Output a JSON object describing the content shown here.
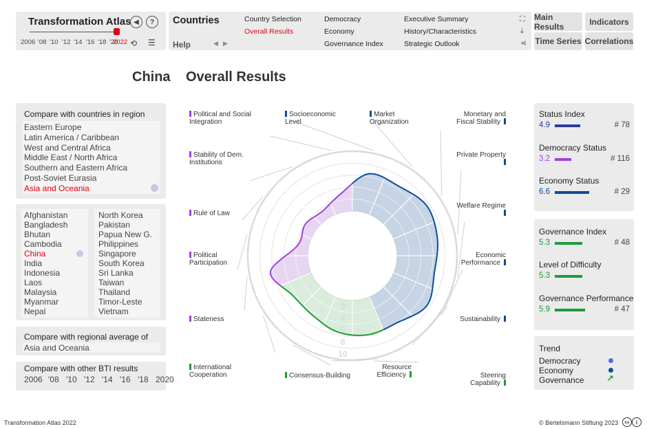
{
  "header": {
    "app_title": "Transformation Atlas",
    "years": [
      "2006",
      "'08",
      "'10",
      "'12",
      "'14",
      "'16",
      "'18",
      "'20",
      "2022"
    ],
    "section_title": "Countries",
    "help_label": "Help",
    "menu": {
      "col1": [
        {
          "label": "Country Selection",
          "active": false
        },
        {
          "label": "Overall Results",
          "active": true
        }
      ],
      "col2": [
        {
          "label": "Democracy"
        },
        {
          "label": "Economy"
        },
        {
          "label": "Governance Index"
        }
      ],
      "col3": [
        {
          "label": "Executive Summary"
        },
        {
          "label": "History/Characteristics"
        },
        {
          "label": "Strategic Outlook"
        }
      ]
    },
    "nav_buttons": [
      "Main Results",
      "Indicators",
      "Time Series",
      "Correlations"
    ]
  },
  "page": {
    "country": "China",
    "view": "Overall Results"
  },
  "left": {
    "region_title": "Compare with countries in region",
    "regions": [
      "Eastern Europe",
      "Latin America / Caribbean",
      "West and Central Africa",
      "Middle East / North Africa",
      "Southern and Eastern Africa",
      "Post-Soviet Eurasia",
      "Asia and Oceania"
    ],
    "selected_region": "Asia and Oceania",
    "countries_col1": [
      "Afghanistan",
      "Bangladesh",
      "Bhutan",
      "Cambodia",
      "China",
      "India",
      "Indonesia",
      "Laos",
      "Malaysia",
      "Myanmar",
      "Nepal"
    ],
    "countries_col2": [
      "North Korea",
      "Pakistan",
      "Papua New G.",
      "Philippines",
      "Singapore",
      "South Korea",
      "Sri Lanka",
      "Taiwan",
      "Thailand",
      "Timor-Leste",
      "Vietnam"
    ],
    "selected_country": "China",
    "regional_title": "Compare with regional average of",
    "regional_value": "Asia and Oceania",
    "bti_title": "Compare with other BTI results",
    "bti_years": [
      "2006",
      "'08",
      "'10",
      "'12",
      "'14",
      "'16",
      "'18",
      "2020"
    ]
  },
  "radar": {
    "scale_labels": [
      "2",
      "4",
      "6",
      "8",
      "10"
    ],
    "colors": {
      "democracy": "#a23fe0",
      "economy": "#0e4c9a",
      "governance": "#1e9a3a"
    },
    "dimensions": [
      {
        "label": "Socioeconomic Level",
        "group": "economy",
        "score": 6.5
      },
      {
        "label": "Market Organization",
        "group": "economy",
        "score": 6.5
      },
      {
        "label": "Monetary and Fiscal Stability",
        "group": "economy",
        "score": 7.5
      },
      {
        "label": "Private Property",
        "group": "economy",
        "score": 7.0
      },
      {
        "label": "Welfare Regime",
        "group": "economy",
        "score": 6.5
      },
      {
        "label": "Economic Performance",
        "group": "economy",
        "score": 7.5
      },
      {
        "label": "Sustainability",
        "group": "economy",
        "score": 6.0
      },
      {
        "label": "Steering Capability",
        "group": "governance",
        "score": 6.0
      },
      {
        "label": "Resource Efficiency",
        "group": "governance",
        "score": 5.5
      },
      {
        "label": "Consensus-Building",
        "group": "governance",
        "score": 4.5
      },
      {
        "label": "International Cooperation",
        "group": "governance",
        "score": 4.5
      },
      {
        "label": "Stateness",
        "group": "democracy",
        "score": 6.5
      },
      {
        "label": "Political Participation",
        "group": "democracy",
        "score": 1.8
      },
      {
        "label": "Rule of Law",
        "group": "democracy",
        "score": 2.0
      },
      {
        "label": "Stability of Dem. Institutions",
        "group": "democracy",
        "score": 1.5
      },
      {
        "label": "Political and Social Integration",
        "group": "democracy",
        "score": 3.0
      }
    ]
  },
  "scores": {
    "status_index": {
      "title": "Status Index",
      "value": "4.9",
      "rank": "# 78",
      "color": "#2a3c9e",
      "fraction": 0.49
    },
    "democracy_status": {
      "title": "Democracy Status",
      "value": "3.2",
      "rank": "# 116",
      "color": "#a23fe0",
      "fraction": 0.32
    },
    "economy_status": {
      "title": "Economy Status",
      "value": "6.6",
      "rank": "# 29",
      "color": "#0e4c9a",
      "fraction": 0.66
    },
    "governance_index": {
      "title": "Governance Index",
      "value": "5.3",
      "rank": "# 48",
      "color": "#1e9a3a",
      "fraction": 0.53
    },
    "difficulty": {
      "title": "Level of Difficulty",
      "value": "5.3",
      "rank": "",
      "color": "#1e9a3a",
      "fraction": 0.53
    },
    "governance_performance": {
      "title": "Governance Performance",
      "value": "5.9",
      "rank": "# 47",
      "color": "#1e9a3a",
      "fraction": 0.59
    }
  },
  "trend": {
    "title": "Trend",
    "items": [
      {
        "label": "Democracy",
        "icon": "dot",
        "color": "#4a6cf0"
      },
      {
        "label": "Economy",
        "icon": "dot",
        "color": "#0e4c9a"
      },
      {
        "label": "Governance",
        "icon": "arrow-up-right",
        "color": "#1e9a3a"
      }
    ]
  },
  "footer": {
    "left": "Transformation Atlas 2022",
    "right": "© Bertelsmann Stiftung 2023"
  }
}
